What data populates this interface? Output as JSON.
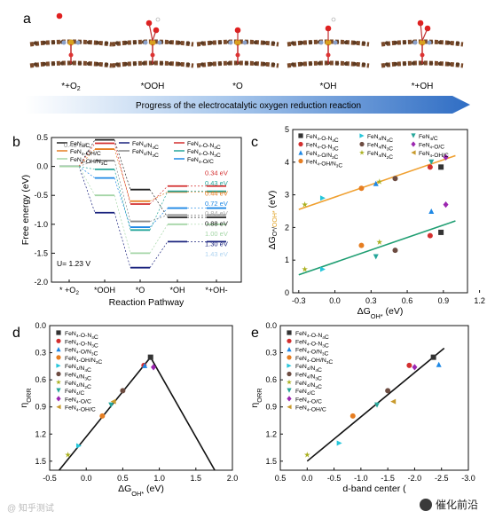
{
  "panel_a": {
    "letter": "a",
    "labels": [
      "*+O2",
      "*OOH",
      "*O",
      "*OH",
      "*+OH"
    ],
    "arrow_text": "Progress of the electrocatalytic oxygen reduction reaction"
  },
  "chart_data": [
    {
      "panel": "b",
      "type": "line",
      "xlabel": "Reaction Pathway",
      "ylabel": "Free energy (eV)",
      "categories": [
        "* +O2",
        "*OOH",
        "*O",
        "*OH",
        "*+OH-"
      ],
      "ylim": [
        -2.0,
        0.5
      ],
      "yticks": [
        "0.5",
        "0.0",
        "-0.5",
        "-1.0",
        "-1.5",
        "-2.0"
      ],
      "potential_label": "U= 1.23 V",
      "top_annotation": "0.46 eV",
      "series": [
        {
          "name": "FeN4/C",
          "color": "#222222",
          "values": [
            0,
            0.46,
            -0.4,
            -0.88,
            -0.88
          ]
        },
        {
          "name": "FeN4-O-N4C",
          "color": "#d32f2f",
          "values": [
            0,
            0.4,
            -0.65,
            -0.34,
            -0.34
          ]
        },
        {
          "name": "FeN4-O/C",
          "color": "#1e88e5",
          "values": [
            0,
            -0.2,
            -1.05,
            -0.72,
            -0.72
          ]
        },
        {
          "name": "FeN4-OH/C",
          "color": "#e67e22",
          "values": [
            0,
            0.3,
            -0.6,
            -0.44,
            -0.44
          ]
        },
        {
          "name": "FeN4/N4C",
          "color": "#1a237e",
          "values": [
            0,
            -0.8,
            -1.75,
            -1.3,
            -1.3
          ]
        },
        {
          "name": "FeN4-O-N3C",
          "color": "#26a69a",
          "values": [
            0,
            -0.05,
            -1.1,
            -0.43,
            -0.43
          ]
        },
        {
          "name": "FeN4/N3C",
          "color": "#888888",
          "values": [
            0,
            0.1,
            -0.95,
            -0.84,
            -0.84
          ]
        },
        {
          "name": "FeN4-OH/N3C",
          "color": "#a5d6a7",
          "values": [
            0,
            -0.5,
            -1.5,
            -1.0,
            -1.0
          ]
        }
      ],
      "energy_labels": [
        {
          "text": "0.34 eV",
          "color": "#d32f2f"
        },
        {
          "text": "0.43 eV",
          "color": "#26a69a"
        },
        {
          "text": "0.44 eV",
          "color": "#e67e22"
        },
        {
          "text": "0.72 eV",
          "color": "#1e88e5"
        },
        {
          "text": "0.84 eV",
          "color": "#aaaaaa"
        },
        {
          "text": "0.88 eV",
          "color": "#222222"
        },
        {
          "text": "1.00 eV",
          "color": "#a5d6a7"
        },
        {
          "text": "1.30 eV",
          "color": "#1a237e"
        },
        {
          "text": "1.43 eV",
          "color": "#b0d4f0"
        }
      ]
    },
    {
      "panel": "c",
      "type": "scatter",
      "xlabel": "ΔG_OH* (eV)",
      "ylabel": "ΔG_O*/OOH* (eV)",
      "xlim": [
        -0.35,
        1.1
      ],
      "ylim": [
        0.0,
        5.0
      ],
      "xticks": [
        "-0.3",
        "0.0",
        "0.3",
        "0.6",
        "0.9",
        "1.2"
      ],
      "yticks": [
        "0",
        "1",
        "2",
        "3",
        "4",
        "5"
      ],
      "legend": [
        {
          "name": "FeN4-O-N4C",
          "color": "#333333",
          "marker": "square"
        },
        {
          "name": "FeN4-O-N3C",
          "color": "#d32f2f",
          "marker": "circle"
        },
        {
          "name": "FeN4-O/N3C",
          "color": "#1e88e5",
          "marker": "triangle-up"
        },
        {
          "name": "FeN4-OH/N3C",
          "color": "#e67e22",
          "marker": "circle"
        },
        {
          "name": "FeN4/N4C",
          "color": "#26c6da",
          "marker": "triangle-right"
        },
        {
          "name": "FeN4/N3C",
          "color": "#6d4c41",
          "marker": "circle"
        },
        {
          "name": "FeN4/N2C",
          "color": "#aab020",
          "marker": "star"
        },
        {
          "name": "FeN4/C",
          "color": "#26a69a",
          "marker": "triangle-down"
        },
        {
          "name": "FeN4-O/C",
          "color": "#9c27b0",
          "marker": "diamond"
        },
        {
          "name": "FeN4-OH/C",
          "color": "#c89a2c",
          "marker": "triangle-left"
        }
      ],
      "fit_upper": {
        "color": "#f0a030",
        "x": [
          -0.3,
          1.0
        ],
        "y": [
          2.55,
          4.2
        ]
      },
      "fit_lower": {
        "color": "#1f9e72",
        "x": [
          -0.3,
          1.0
        ],
        "y": [
          0.55,
          2.2
        ]
      },
      "points_upper": [
        {
          "x": -0.25,
          "y": 2.7,
          "series": 6
        },
        {
          "x": -0.1,
          "y": 2.9,
          "series": 4
        },
        {
          "x": 0.22,
          "y": 3.2,
          "series": 3
        },
        {
          "x": 0.34,
          "y": 3.35,
          "series": 2
        },
        {
          "x": 0.37,
          "y": 3.4,
          "series": 6
        },
        {
          "x": 0.5,
          "y": 3.5,
          "series": 5
        },
        {
          "x": 0.79,
          "y": 3.85,
          "series": 1
        },
        {
          "x": 0.8,
          "y": 4.0,
          "series": 7
        },
        {
          "x": 0.88,
          "y": 3.85,
          "series": 0
        },
        {
          "x": 0.92,
          "y": 4.15,
          "series": 8
        }
      ],
      "points_lower": [
        {
          "x": -0.25,
          "y": 0.72,
          "series": 6
        },
        {
          "x": -0.1,
          "y": 0.72,
          "series": 4
        },
        {
          "x": 0.22,
          "y": 1.45,
          "series": 3
        },
        {
          "x": 0.34,
          "y": 1.1,
          "series": 7
        },
        {
          "x": 0.37,
          "y": 1.55,
          "series": 6
        },
        {
          "x": 0.5,
          "y": 1.3,
          "series": 5
        },
        {
          "x": 0.79,
          "y": 1.75,
          "series": 1
        },
        {
          "x": 0.8,
          "y": 2.5,
          "series": 2
        },
        {
          "x": 0.88,
          "y": 1.85,
          "series": 0
        },
        {
          "x": 0.92,
          "y": 2.7,
          "series": 8
        }
      ]
    },
    {
      "panel": "d",
      "type": "scatter",
      "xlabel": "ΔG_OH* (eV)",
      "ylabel": "η_ORR",
      "xlim": [
        -0.5,
        2.0
      ],
      "ylim": [
        0.0,
        1.6
      ],
      "y_inverted": true,
      "xticks": [
        "-0.5",
        "0.0",
        "0.5",
        "1.0",
        "1.5",
        "2.0"
      ],
      "yticks": [
        "0.0",
        "0.3",
        "0.6",
        "0.9",
        "1.2",
        "1.5"
      ],
      "volcano": {
        "x": [
          -0.5,
          0.88,
          1.85
        ],
        "y": [
          1.73,
          0.35,
          1.73
        ]
      },
      "points": [
        {
          "x": 0.88,
          "y": 0.35,
          "series": 0
        },
        {
          "x": 0.79,
          "y": 0.44,
          "series": 1
        },
        {
          "x": 0.8,
          "y": 0.44,
          "series": 2
        },
        {
          "x": 0.22,
          "y": 1.0,
          "series": 3
        },
        {
          "x": -0.1,
          "y": 1.33,
          "series": 4
        },
        {
          "x": 0.5,
          "y": 0.72,
          "series": 5
        },
        {
          "x": -0.25,
          "y": 1.43,
          "series": 6
        },
        {
          "x": 0.34,
          "y": 0.88,
          "series": 7
        },
        {
          "x": 0.92,
          "y": 0.46,
          "series": 8
        },
        {
          "x": 0.37,
          "y": 0.84,
          "series": 9
        }
      ]
    },
    {
      "panel": "e",
      "type": "scatter",
      "xlabel": "d-band center (",
      "ylabel": "η_ORR",
      "xlim": [
        0.5,
        -3.0
      ],
      "ylim": [
        0.0,
        1.6
      ],
      "y_inverted": true,
      "xticks": [
        "0.5",
        "0.0",
        "-0.5",
        "-1.0",
        "-1.5",
        "-2.0",
        "-2.5",
        "-3.0"
      ],
      "yticks": [
        "0.0",
        "0.3",
        "0.6",
        "0.9",
        "1.2",
        "1.5"
      ],
      "fit": {
        "x": [
          0.0,
          -2.55
        ],
        "y": [
          1.5,
          0.25
        ]
      },
      "points": [
        {
          "x": -2.35,
          "y": 0.35,
          "series": 0
        },
        {
          "x": -1.9,
          "y": 0.44,
          "series": 1
        },
        {
          "x": -2.45,
          "y": 0.43,
          "series": 2
        },
        {
          "x": -0.85,
          "y": 1.0,
          "series": 3
        },
        {
          "x": -0.6,
          "y": 1.3,
          "series": 4
        },
        {
          "x": -1.5,
          "y": 0.72,
          "series": 5
        },
        {
          "x": 0.0,
          "y": 1.43,
          "series": 6
        },
        {
          "x": -1.3,
          "y": 0.88,
          "series": 7
        },
        {
          "x": -2.0,
          "y": 0.46,
          "series": 8
        },
        {
          "x": -1.6,
          "y": 0.84,
          "series": 9
        }
      ]
    }
  ],
  "watermark": {
    "right": "催化前沿",
    "left": "@ 知乎测试"
  }
}
